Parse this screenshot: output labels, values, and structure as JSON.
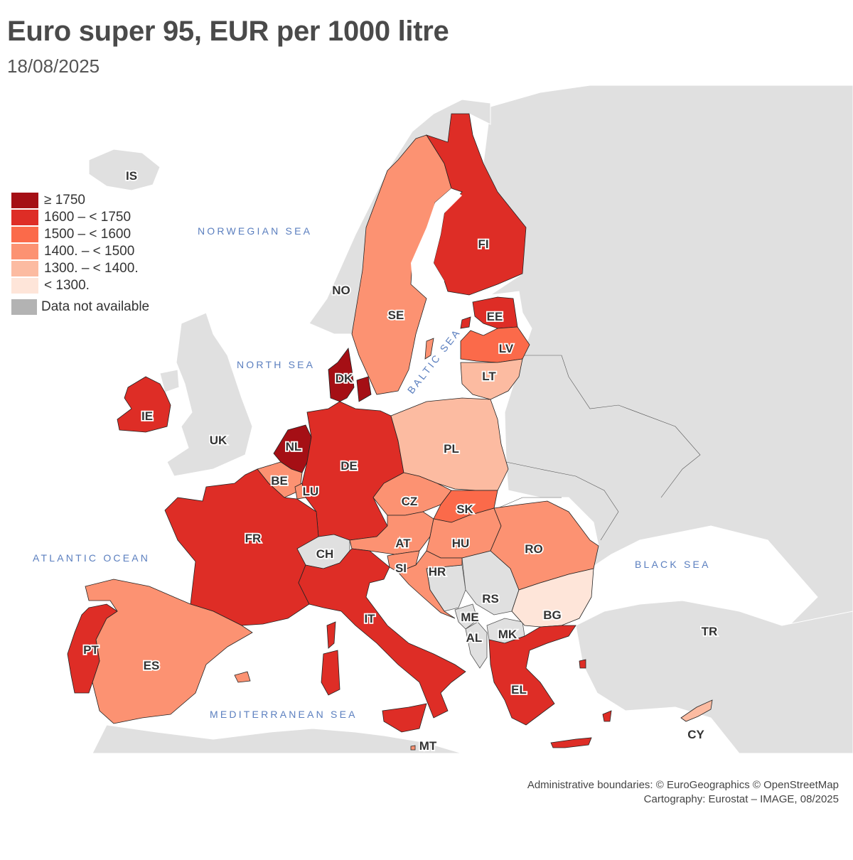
{
  "title": "Euro super 95, EUR per 1000 litre",
  "subtitle": "18/08/2025",
  "colors": {
    "c6": "#a50f15",
    "c5": "#de2d26",
    "c4": "#fb6a4a",
    "c3": "#fc9272",
    "c2": "#fcbba1",
    "c1": "#fee5d9",
    "na": "#b3b3b3",
    "land": "#e0e0e0",
    "sea": "#ffffff",
    "sea_label": "#5b7fbf"
  },
  "legend": [
    {
      "label": "≥ 1750",
      "color": "#a50f15"
    },
    {
      "label": "1600 – < 1750",
      "color": "#de2d26"
    },
    {
      "label": "1500 – < 1600",
      "color": "#fb6a4a"
    },
    {
      "label": "1400. – < 1500",
      "color": "#fc9272"
    },
    {
      "label": "1300. – < 1400.",
      "color": "#fcbba1"
    },
    {
      "label": "< 1300.",
      "color": "#fee5d9"
    }
  ],
  "legend_na": {
    "label": "Data not available",
    "color": "#b3b3b3"
  },
  "seas": {
    "norwegian": "NORWEGIAN SEA",
    "north": "NORTH SEA",
    "baltic": "BALTIC SEA",
    "atlantic": "ATLANTIC OCEAN",
    "black": "BLACK SEA",
    "mediterranean": "MEDITERRANEAN SEA"
  },
  "countries": {
    "IS": {
      "label": "IS",
      "class": "na"
    },
    "NO": {
      "label": "NO",
      "class": "na"
    },
    "SE": {
      "label": "SE",
      "class": "1400. – < 1500"
    },
    "FI": {
      "label": "FI",
      "class": "1600 – < 1750"
    },
    "EE": {
      "label": "EE",
      "class": "1600 – < 1750"
    },
    "LV": {
      "label": "LV",
      "class": "1500 – < 1600"
    },
    "LT": {
      "label": "LT",
      "class": "1300. – < 1400."
    },
    "DK": {
      "label": "DK",
      "class": "≥ 1750"
    },
    "IE": {
      "label": "IE",
      "class": "1600 – < 1750"
    },
    "UK": {
      "label": "UK",
      "class": "na"
    },
    "NL": {
      "label": "NL",
      "class": "≥ 1750"
    },
    "BE": {
      "label": "BE",
      "class": "1400. – < 1500"
    },
    "LU": {
      "label": "LU",
      "class": "1400. – < 1500"
    },
    "DE": {
      "label": "DE",
      "class": "1600 – < 1750"
    },
    "PL": {
      "label": "PL",
      "class": "1300. – < 1400."
    },
    "CZ": {
      "label": "CZ",
      "class": "1400. – < 1500"
    },
    "SK": {
      "label": "SK",
      "class": "1500 – < 1600"
    },
    "AT": {
      "label": "AT",
      "class": "1400. – < 1500"
    },
    "HU": {
      "label": "HU",
      "class": "1400. – < 1500"
    },
    "RO": {
      "label": "RO",
      "class": "1400. – < 1500"
    },
    "SI": {
      "label": "SI",
      "class": "1400. – < 1500"
    },
    "HR": {
      "label": "HR",
      "class": "1400. – < 1500"
    },
    "CH": {
      "label": "CH",
      "class": "na"
    },
    "FR": {
      "label": "FR",
      "class": "1600 – < 1750"
    },
    "IT": {
      "label": "IT",
      "class": "1600 – < 1750"
    },
    "ES": {
      "label": "ES",
      "class": "1400. – < 1500"
    },
    "PT": {
      "label": "PT",
      "class": "1600 – < 1750"
    },
    "RS": {
      "label": "RS",
      "class": "na"
    },
    "ME": {
      "label": "ME",
      "class": "na"
    },
    "AL": {
      "label": "AL",
      "class": "na"
    },
    "MK": {
      "label": "MK",
      "class": "na"
    },
    "BG": {
      "label": "BG",
      "class": "< 1300."
    },
    "TR": {
      "label": "TR",
      "class": "na"
    },
    "EL": {
      "label": "EL",
      "class": "1600 – < 1750"
    },
    "CY": {
      "label": "CY",
      "class": "1300. – < 1400."
    },
    "MT": {
      "label": "MT",
      "class": "1400. – < 1500"
    }
  },
  "credits": {
    "line1": "Administrative boundaries: © EuroGeographics © OpenStreetMap",
    "line2": "Cartography: Eurostat – IMAGE, 08/2025"
  }
}
